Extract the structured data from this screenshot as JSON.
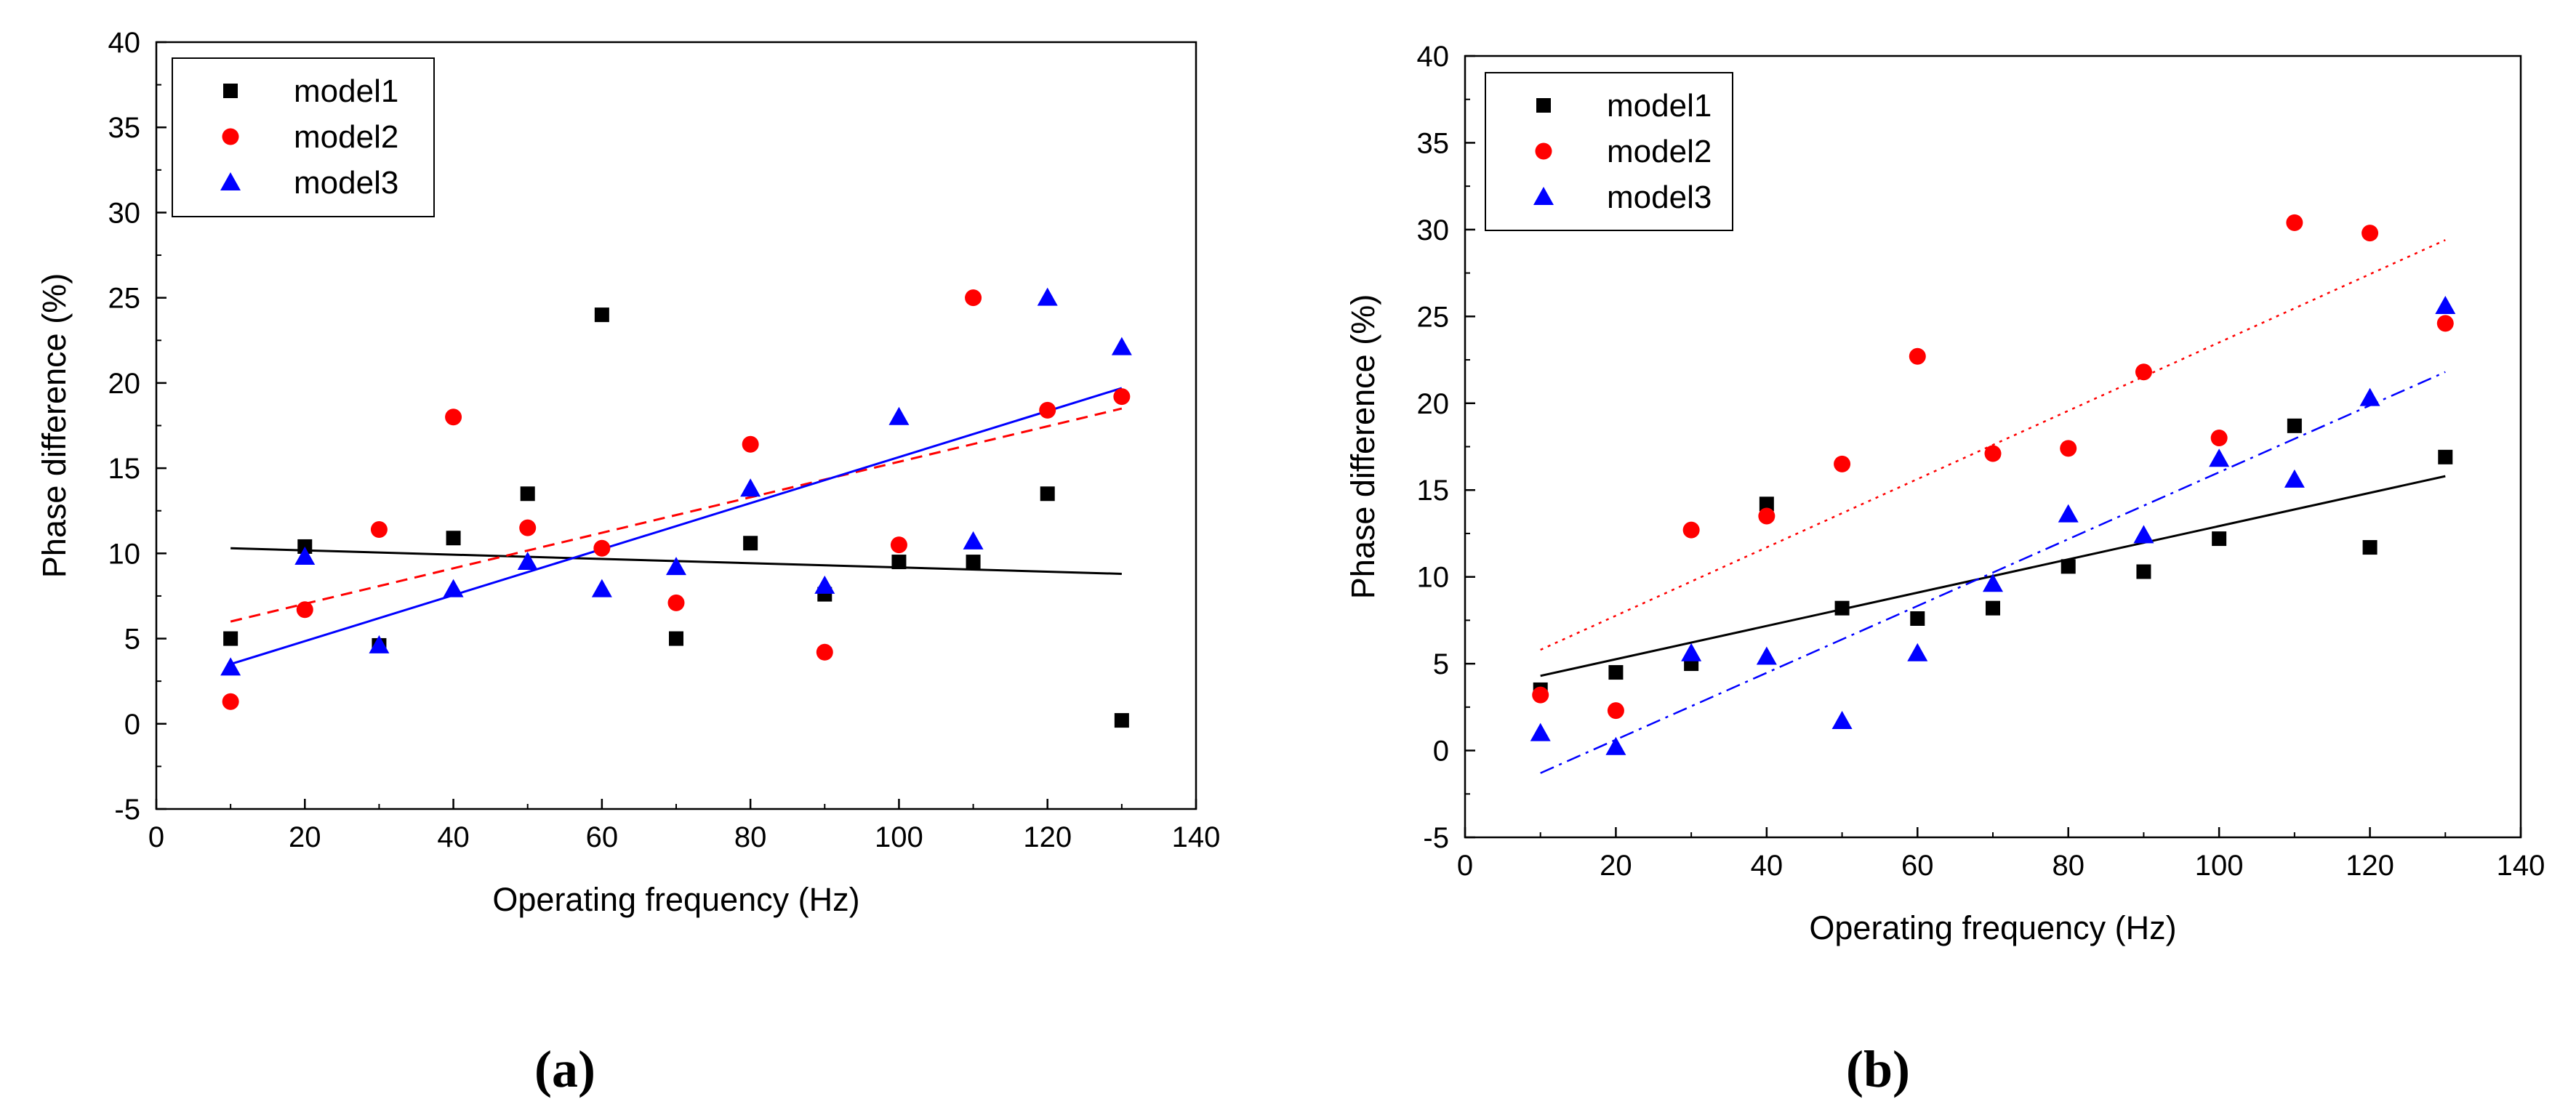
{
  "chart_data": [
    {
      "type": "scatter",
      "panel_label": "(a)",
      "xlabel": "Operating frequency (Hz)",
      "ylabel": "Phase difference (%)",
      "xlim": [
        0,
        140
      ],
      "ylim": [
        -5,
        40
      ],
      "xticks": [
        0,
        20,
        40,
        60,
        80,
        100,
        120,
        140
      ],
      "yticks": [
        -5,
        0,
        5,
        10,
        15,
        20,
        25,
        30,
        35,
        40
      ],
      "legend_position": "top-left",
      "series": [
        {
          "name": "model1",
          "marker": "square",
          "color": "#000000",
          "x": [
            10,
            20,
            30,
            40,
            50,
            60,
            70,
            80,
            90,
            100,
            110,
            120,
            130
          ],
          "y": [
            5.0,
            10.4,
            4.6,
            10.9,
            13.5,
            24.0,
            5.0,
            10.6,
            7.6,
            9.5,
            9.5,
            13.5,
            0.2
          ],
          "fit": {
            "x": [
              10,
              130
            ],
            "y": [
              10.3,
              8.8
            ],
            "style": "solid"
          }
        },
        {
          "name": "model2",
          "marker": "circle",
          "color": "#ff0000",
          "x": [
            10,
            20,
            30,
            40,
            50,
            60,
            70,
            80,
            90,
            100,
            110,
            120,
            130
          ],
          "y": [
            1.3,
            6.7,
            11.4,
            18.0,
            11.5,
            10.3,
            7.1,
            16.4,
            4.2,
            10.5,
            25.0,
            18.4,
            19.2
          ],
          "fit": {
            "x": [
              10,
              130
            ],
            "y": [
              6.0,
              18.5
            ],
            "style": "dashed"
          }
        },
        {
          "name": "model3",
          "marker": "triangle",
          "color": "#0000ff",
          "x": [
            10,
            20,
            30,
            40,
            50,
            60,
            70,
            80,
            90,
            100,
            110,
            120,
            130
          ],
          "y": [
            3.3,
            9.8,
            4.6,
            7.9,
            9.5,
            7.9,
            9.2,
            13.8,
            8.1,
            18.0,
            10.7,
            25.0,
            22.1
          ],
          "fit": {
            "x": [
              10,
              130
            ],
            "y": [
              3.5,
              19.7
            ],
            "style": "solid"
          }
        }
      ]
    },
    {
      "type": "scatter",
      "panel_label": "(b)",
      "xlabel": "Operating frequency (Hz)",
      "ylabel": "Phase difference (%)",
      "xlim": [
        0,
        140
      ],
      "ylim": [
        -5,
        40
      ],
      "xticks": [
        0,
        20,
        40,
        60,
        80,
        100,
        120,
        140
      ],
      "yticks": [
        -5,
        0,
        5,
        10,
        15,
        20,
        25,
        30,
        35,
        40
      ],
      "legend_position": "top-left",
      "series": [
        {
          "name": "model1",
          "marker": "square",
          "color": "#000000",
          "x": [
            10,
            20,
            30,
            40,
            50,
            60,
            70,
            80,
            90,
            100,
            110,
            120,
            130
          ],
          "y": [
            3.5,
            4.5,
            5.0,
            14.2,
            8.2,
            7.6,
            8.2,
            10.6,
            10.3,
            12.2,
            18.7,
            11.7,
            16.9
          ],
          "fit": {
            "x": [
              10,
              130
            ],
            "y": [
              4.3,
              15.8
            ],
            "style": "solid"
          }
        },
        {
          "name": "model2",
          "marker": "circle",
          "color": "#ff0000",
          "x": [
            10,
            20,
            30,
            40,
            50,
            60,
            70,
            80,
            90,
            100,
            110,
            120,
            130
          ],
          "y": [
            3.2,
            2.3,
            12.7,
            13.5,
            16.5,
            22.7,
            17.1,
            17.4,
            21.8,
            18.0,
            30.4,
            29.8,
            24.6
          ],
          "fit": {
            "x": [
              10,
              130
            ],
            "y": [
              5.8,
              29.4
            ],
            "style": "dotted"
          }
        },
        {
          "name": "model3",
          "marker": "triangle",
          "color": "#0000ff",
          "x": [
            10,
            20,
            30,
            40,
            50,
            60,
            70,
            80,
            90,
            100,
            110,
            120,
            130
          ],
          "y": [
            1.0,
            0.2,
            5.6,
            5.4,
            1.7,
            5.6,
            9.6,
            13.6,
            12.4,
            16.8,
            15.6,
            20.3,
            25.6
          ],
          "fit": {
            "x": [
              10,
              130
            ],
            "y": [
              -1.3,
              21.8
            ],
            "style": "dashdot"
          }
        }
      ]
    }
  ]
}
